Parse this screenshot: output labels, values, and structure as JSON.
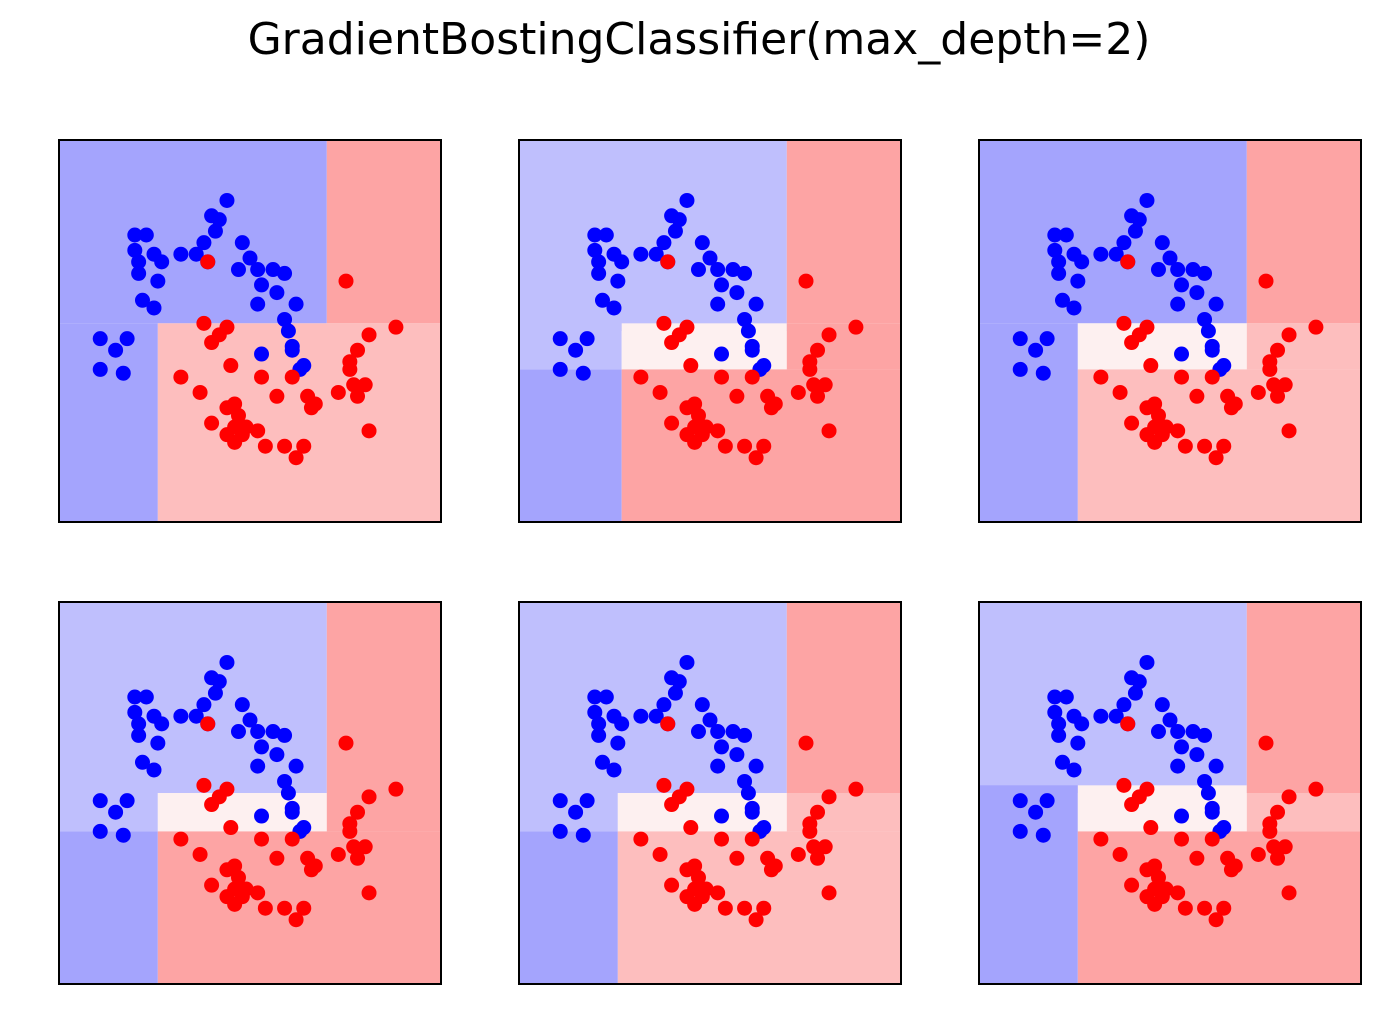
{
  "title": "GradientBostingClassifier(max_depth=2)",
  "colors": {
    "blue_point": "#0000ff",
    "red_point": "#ff0000",
    "blue_strong": "#a4a4fd",
    "blue_light": "#bfbffd",
    "red_strong": "#fda4a4",
    "red_light": "#fdbebe",
    "white_zone": "#fdf0f0"
  },
  "chart_data": {
    "type": "scatter",
    "xlim": [
      0,
      10
    ],
    "ylim": [
      0,
      10
    ],
    "points": {
      "blue": [
        [
          2.0,
          7.5
        ],
        [
          2.3,
          7.5
        ],
        [
          2.0,
          7.1
        ],
        [
          2.5,
          7.0
        ],
        [
          2.1,
          6.8
        ],
        [
          2.7,
          6.8
        ],
        [
          2.1,
          6.5
        ],
        [
          2.6,
          6.3
        ],
        [
          3.2,
          7.0
        ],
        [
          3.6,
          7.0
        ],
        [
          3.9,
          6.8
        ],
        [
          3.8,
          7.3
        ],
        [
          4.1,
          7.6
        ],
        [
          4.2,
          7.9
        ],
        [
          4.4,
          8.4
        ],
        [
          4.0,
          8.0
        ],
        [
          4.8,
          7.3
        ],
        [
          5.0,
          6.9
        ],
        [
          5.2,
          6.6
        ],
        [
          5.6,
          6.6
        ],
        [
          4.7,
          6.6
        ],
        [
          5.3,
          6.2
        ],
        [
          5.9,
          6.5
        ],
        [
          5.7,
          6.0
        ],
        [
          5.2,
          5.7
        ],
        [
          6.2,
          5.7
        ],
        [
          5.9,
          5.3
        ],
        [
          6.0,
          5.0
        ],
        [
          6.1,
          4.5
        ],
        [
          6.3,
          4.0
        ],
        [
          6.1,
          4.6
        ],
        [
          2.2,
          5.8
        ],
        [
          2.5,
          5.6
        ],
        [
          1.1,
          4.8
        ],
        [
          1.5,
          4.5
        ],
        [
          1.8,
          4.8
        ],
        [
          1.1,
          4.0
        ],
        [
          1.7,
          3.9
        ],
        [
          5.3,
          4.4
        ],
        [
          6.4,
          4.1
        ]
      ],
      "red": [
        [
          3.9,
          6.8
        ],
        [
          7.5,
          6.3
        ],
        [
          3.8,
          5.2
        ],
        [
          4.2,
          4.9
        ],
        [
          4.4,
          5.1
        ],
        [
          4.0,
          4.7
        ],
        [
          8.8,
          5.1
        ],
        [
          8.1,
          4.9
        ],
        [
          7.8,
          4.5
        ],
        [
          7.6,
          4.2
        ],
        [
          3.2,
          3.8
        ],
        [
          3.7,
          3.4
        ],
        [
          4.5,
          4.1
        ],
        [
          5.3,
          3.8
        ],
        [
          6.1,
          3.8
        ],
        [
          5.7,
          3.3
        ],
        [
          6.5,
          3.3
        ],
        [
          6.7,
          3.1
        ],
        [
          6.6,
          3.0
        ],
        [
          7.3,
          3.4
        ],
        [
          7.7,
          3.6
        ],
        [
          7.6,
          4.0
        ],
        [
          8.0,
          3.6
        ],
        [
          7.8,
          3.3
        ],
        [
          4.4,
          3.0
        ],
        [
          4.6,
          3.1
        ],
        [
          4.7,
          2.8
        ],
        [
          4.6,
          2.5
        ],
        [
          4.9,
          2.5
        ],
        [
          4.4,
          2.3
        ],
        [
          4.8,
          2.3
        ],
        [
          4.6,
          2.1
        ],
        [
          5.2,
          2.4
        ],
        [
          4.0,
          2.6
        ],
        [
          5.4,
          2.0
        ],
        [
          5.9,
          2.0
        ],
        [
          6.2,
          1.7
        ],
        [
          6.4,
          2.0
        ],
        [
          8.1,
          2.4
        ]
      ]
    },
    "panels": [
      {
        "regions": [
          {
            "x0": 0,
            "x1": 7.0,
            "y0": 5.2,
            "y1": 10,
            "c": "blue_strong"
          },
          {
            "x0": 0,
            "x1": 2.6,
            "y0": 0,
            "y1": 5.2,
            "c": "blue_strong"
          },
          {
            "x0": 7.0,
            "x1": 10,
            "y0": 5.2,
            "y1": 10,
            "c": "red_strong"
          },
          {
            "x0": 2.6,
            "x1": 10,
            "y0": 0,
            "y1": 5.2,
            "c": "red_light"
          }
        ]
      },
      {
        "regions": [
          {
            "x0": 0,
            "x1": 7.0,
            "y0": 5.0,
            "y1": 10,
            "c": "blue_light"
          },
          {
            "x0": 0,
            "x1": 2.7,
            "y0": 0,
            "y1": 4.0,
            "c": "blue_strong"
          },
          {
            "x0": 0,
            "x1": 2.7,
            "y0": 4.0,
            "y1": 5.0,
            "c": "blue_light"
          },
          {
            "x0": 2.7,
            "x1": 7.0,
            "y0": 4.0,
            "y1": 5.2,
            "c": "white_zone"
          },
          {
            "x0": 7.0,
            "x1": 10,
            "y0": 5.2,
            "y1": 10,
            "c": "red_strong"
          },
          {
            "x0": 7.0,
            "x1": 10,
            "y0": 4.0,
            "y1": 5.2,
            "c": "red_strong"
          },
          {
            "x0": 2.7,
            "x1": 10,
            "y0": 0,
            "y1": 4.0,
            "c": "red_strong"
          }
        ]
      },
      {
        "regions": [
          {
            "x0": 0,
            "x1": 7.0,
            "y0": 5.2,
            "y1": 10,
            "c": "blue_strong"
          },
          {
            "x0": 0,
            "x1": 2.6,
            "y0": 0,
            "y1": 5.2,
            "c": "blue_strong"
          },
          {
            "x0": 2.6,
            "x1": 7.0,
            "y0": 4.0,
            "y1": 5.2,
            "c": "white_zone"
          },
          {
            "x0": 7.0,
            "x1": 10,
            "y0": 5.2,
            "y1": 10,
            "c": "red_strong"
          },
          {
            "x0": 7.0,
            "x1": 10,
            "y0": 4.0,
            "y1": 5.2,
            "c": "red_light"
          },
          {
            "x0": 2.6,
            "x1": 10,
            "y0": 0,
            "y1": 4.0,
            "c": "red_light"
          }
        ]
      },
      {
        "regions": [
          {
            "x0": 0,
            "x1": 7.0,
            "y0": 5.0,
            "y1": 10,
            "c": "blue_light"
          },
          {
            "x0": 0,
            "x1": 2.6,
            "y0": 4.0,
            "y1": 5.0,
            "c": "blue_light"
          },
          {
            "x0": 0,
            "x1": 2.6,
            "y0": 0,
            "y1": 4.0,
            "c": "blue_strong"
          },
          {
            "x0": 2.6,
            "x1": 7.0,
            "y0": 4.0,
            "y1": 5.0,
            "c": "white_zone"
          },
          {
            "x0": 7.0,
            "x1": 10,
            "y0": 5.0,
            "y1": 10,
            "c": "red_strong"
          },
          {
            "x0": 7.0,
            "x1": 10,
            "y0": 4.0,
            "y1": 5.0,
            "c": "red_strong"
          },
          {
            "x0": 2.6,
            "x1": 10,
            "y0": 0,
            "y1": 4.0,
            "c": "red_strong"
          }
        ]
      },
      {
        "regions": [
          {
            "x0": 0,
            "x1": 7.0,
            "y0": 5.0,
            "y1": 10,
            "c": "blue_light"
          },
          {
            "x0": 0,
            "x1": 2.6,
            "y0": 4.0,
            "y1": 5.0,
            "c": "blue_light"
          },
          {
            "x0": 0,
            "x1": 2.6,
            "y0": 0,
            "y1": 4.0,
            "c": "blue_strong"
          },
          {
            "x0": 2.6,
            "x1": 7.0,
            "y0": 4.0,
            "y1": 5.0,
            "c": "white_zone"
          },
          {
            "x0": 7.0,
            "x1": 10,
            "y0": 5.0,
            "y1": 10,
            "c": "red_strong"
          },
          {
            "x0": 7.0,
            "x1": 10,
            "y0": 4.0,
            "y1": 5.0,
            "c": "red_light"
          },
          {
            "x0": 2.6,
            "x1": 10,
            "y0": 0,
            "y1": 4.0,
            "c": "red_light"
          }
        ]
      },
      {
        "regions": [
          {
            "x0": 0,
            "x1": 7.0,
            "y0": 5.0,
            "y1": 10,
            "c": "blue_light"
          },
          {
            "x0": 0,
            "x1": 2.6,
            "y0": 0,
            "y1": 5.2,
            "c": "blue_strong"
          },
          {
            "x0": 2.6,
            "x1": 7.0,
            "y0": 4.0,
            "y1": 5.2,
            "c": "white_zone"
          },
          {
            "x0": 7.0,
            "x1": 10,
            "y0": 5.0,
            "y1": 10,
            "c": "red_strong"
          },
          {
            "x0": 7.0,
            "x1": 10,
            "y0": 4.0,
            "y1": 5.0,
            "c": "red_light"
          },
          {
            "x0": 2.6,
            "x1": 10,
            "y0": 0,
            "y1": 4.0,
            "c": "red_strong"
          }
        ]
      }
    ]
  }
}
